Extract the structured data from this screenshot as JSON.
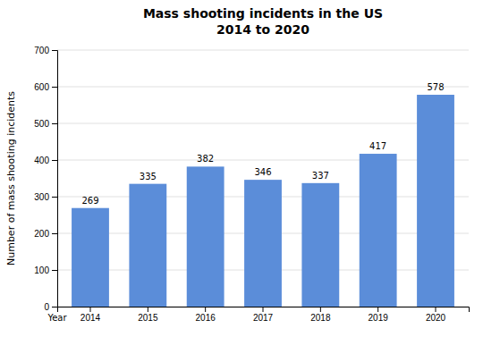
{
  "chart_data": {
    "type": "bar",
    "title": "Mass shooting incidents in the US",
    "subtitle": "2014 to 2020",
    "xlabel": "Year",
    "ylabel": "Number of mass shooting incidents",
    "categories": [
      "2014",
      "2015",
      "2016",
      "2017",
      "2018",
      "2019",
      "2020"
    ],
    "values": [
      269,
      335,
      382,
      346,
      337,
      417,
      578
    ],
    "color": "#5b8dd9",
    "ylim": [
      0,
      700
    ],
    "yticks": [
      0,
      100,
      200,
      300,
      400,
      500,
      600,
      700
    ],
    "grid": true,
    "data_labels": true
  }
}
